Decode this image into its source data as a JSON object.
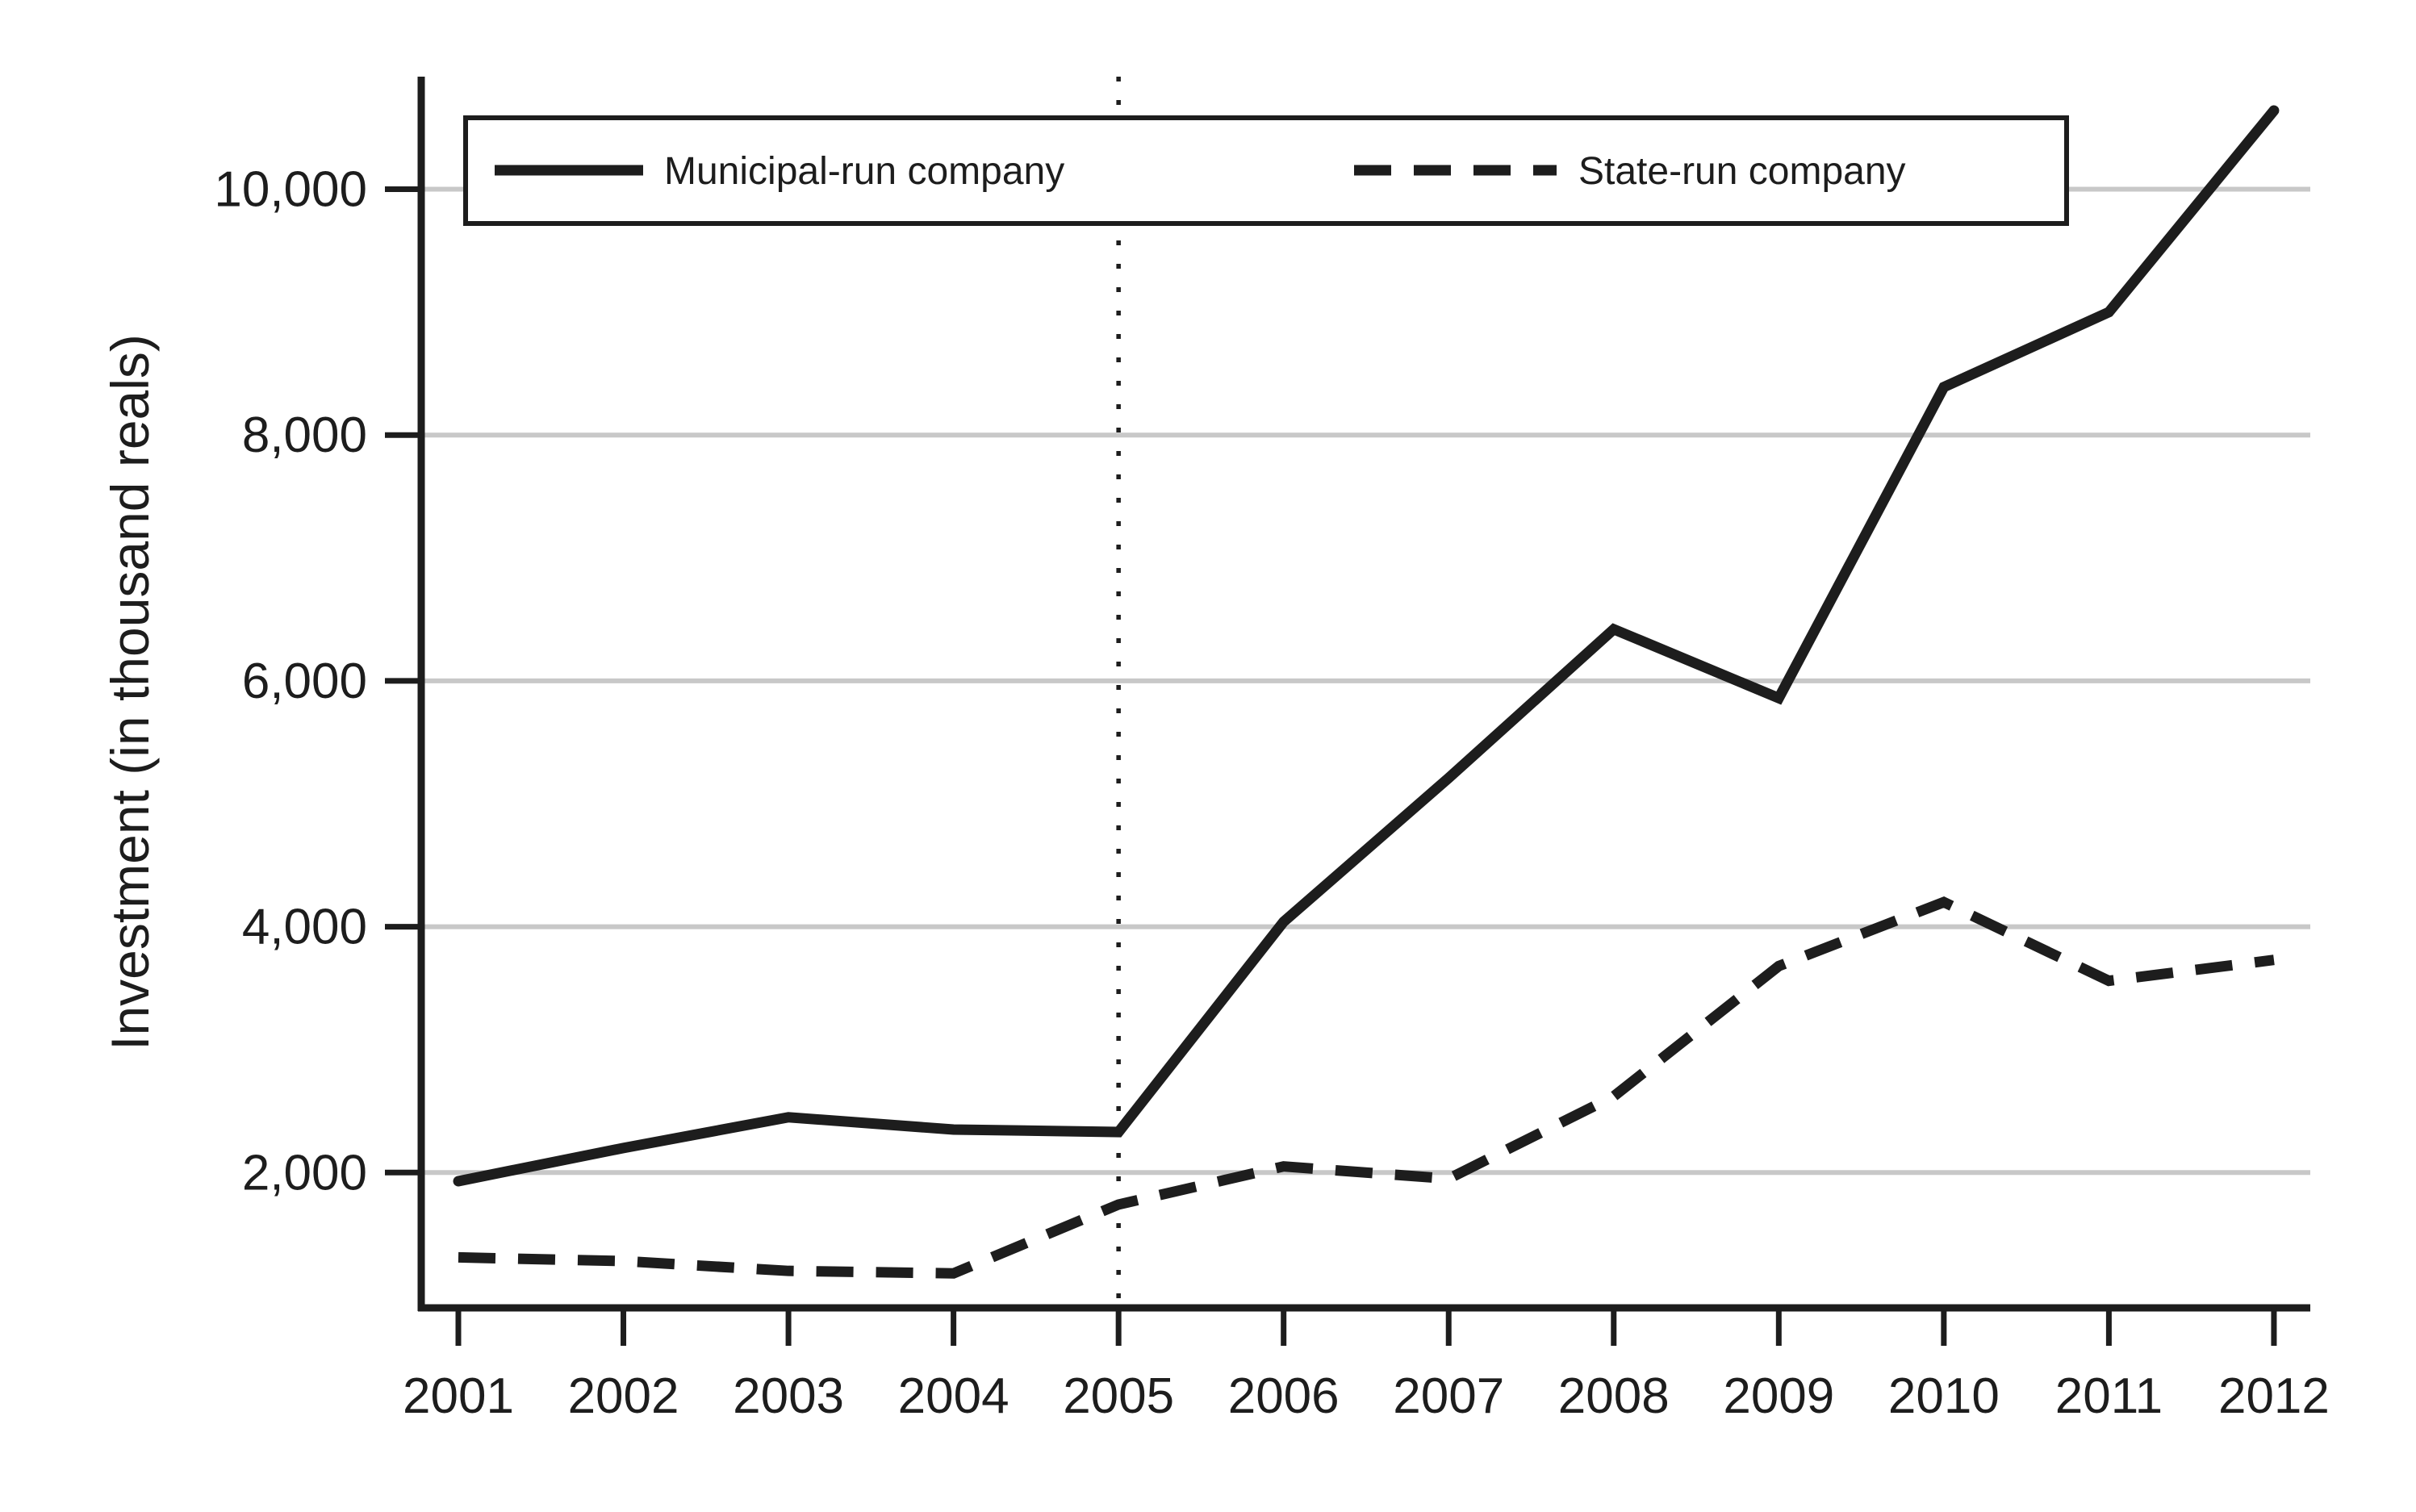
{
  "chart_data": {
    "type": "line",
    "title": "",
    "xlabel": "",
    "ylabel": "Investment (in thousand reals)",
    "x": [
      2001,
      2002,
      2003,
      2004,
      2005,
      2006,
      2007,
      2008,
      2009,
      2010,
      2011,
      2012
    ],
    "x_tick_labels": [
      "2001",
      "2002",
      "2003",
      "2004",
      "2005",
      "2006",
      "2007",
      "2008",
      "2009",
      "2010",
      "2011",
      "2012"
    ],
    "y_ticks": [
      {
        "value": 2000,
        "label": "2,000"
      },
      {
        "value": 4000,
        "label": "4,000"
      },
      {
        "value": 6000,
        "label": "6,000"
      },
      {
        "value": 8000,
        "label": "8,000"
      },
      {
        "value": 10000,
        "label": "10,000"
      }
    ],
    "ylim": [
      900,
      10920
    ],
    "xlim": [
      2000.78,
      2012.22
    ],
    "grid": "horizontal",
    "legend_position": "top-framed",
    "reference_line": {
      "type": "vertical-dotted",
      "x": 2005
    },
    "series": [
      {
        "name": "Municipal-run company",
        "style": "solid",
        "color": "#1d1d1d",
        "values": [
          1930,
          2200,
          2450,
          2350,
          2330,
          4040,
          5210,
          6420,
          5860,
          8390,
          9000,
          10640
        ]
      },
      {
        "name": "State-run company",
        "style": "dashed",
        "color": "#1d1d1d",
        "values": [
          1310,
          1280,
          1200,
          1180,
          1740,
          2050,
          1950,
          2620,
          3680,
          4200,
          3560,
          3730
        ]
      }
    ]
  },
  "colors": {
    "line": "#1d1d1d",
    "grid": "#c8c8c8",
    "background": "#ffffff"
  }
}
